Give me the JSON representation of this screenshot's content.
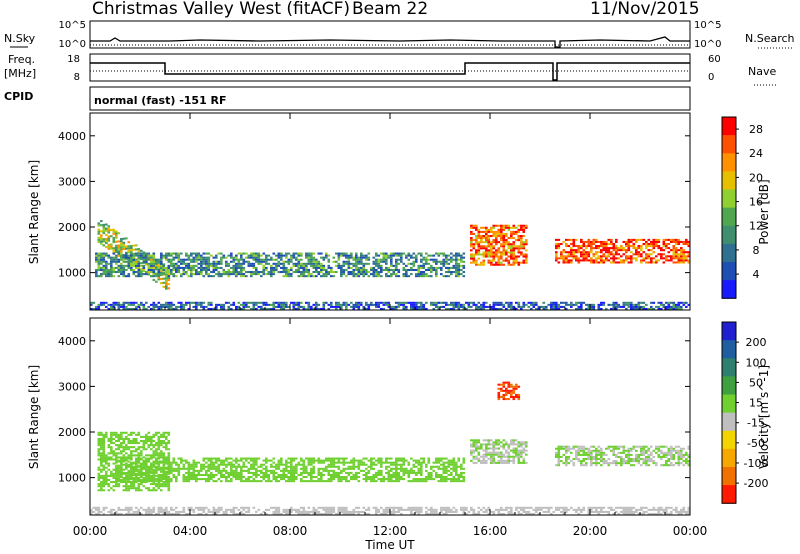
{
  "header": {
    "station": "Christmas Valley West (fitACF)",
    "beam": "Beam 22",
    "date": "11/Nov/2015"
  },
  "left_labels": {
    "nsky": "N.Sky",
    "freq": "Freq.",
    "freq_unit": "[MHz]",
    "cpid": "CPID"
  },
  "right_labels": {
    "nsearch": "N.Search",
    "nave": "Nave"
  },
  "nsky_axis": {
    "top": "10^5",
    "bottom": "10^0"
  },
  "freq_axis": {
    "top": "18",
    "bottom": "8"
  },
  "nave_axis": {
    "top": "60",
    "bottom": "0"
  },
  "cpid_text": "normal (fast) -151 RF",
  "x_axis": {
    "label": "Time UT",
    "ticks": [
      "00:00",
      "04:00",
      "08:00",
      "12:00",
      "16:00",
      "20:00",
      "00:00"
    ]
  },
  "colors": {
    "power": [
      "#1a1aff",
      "#1f4fb4",
      "#2f6f8f",
      "#3f8f6f",
      "#4fa84f",
      "#8fcf2f",
      "#e6c000",
      "#ff9000",
      "#ff5000",
      "#ff0000"
    ],
    "velocity": [
      "#2020d0",
      "#1f5fa0",
      "#2f7f6f",
      "#3fa040",
      "#6fd030",
      "#bfbfbf",
      "#f2d400",
      "#f7a800",
      "#f07000",
      "#ff1a00"
    ],
    "ground_scatter": "#bfbfbf"
  },
  "chart_data": [
    {
      "type": "heatmap",
      "title": "Power",
      "xlabel": "Time UT",
      "ylabel": "Slant Range [km]",
      "xlim": [
        "00:00",
        "24:00"
      ],
      "ylim": [
        180,
        4500
      ],
      "y_ticks": [
        1000,
        2000,
        3000,
        4000
      ],
      "colorbar": {
        "label": "Power [dB]",
        "ticks": [
          4,
          8,
          12,
          16,
          20,
          24,
          28
        ],
        "range": [
          0,
          30
        ]
      },
      "regions": [
        {
          "t": [
            0.3,
            3.2
          ],
          "r": [
            700,
            2000
          ],
          "value": 16,
          "desc": "descending band"
        },
        {
          "t": [
            0.2,
            15.0
          ],
          "r": [
            900,
            1400
          ],
          "value": 10
        },
        {
          "t": [
            15.2,
            17.5
          ],
          "r": [
            1150,
            2050
          ],
          "value": 24
        },
        {
          "t": [
            18.6,
            24.0
          ],
          "r": [
            1200,
            1700
          ],
          "value": 26
        },
        {
          "t": [
            0.0,
            24.0
          ],
          "r": [
            180,
            350
          ],
          "value": 6
        }
      ]
    },
    {
      "type": "heatmap",
      "title": "Velocity",
      "xlabel": "Time UT",
      "ylabel": "Slant Range [km]",
      "xlim": [
        "00:00",
        "24:00"
      ],
      "ylim": [
        180,
        4500
      ],
      "y_ticks": [
        1000,
        2000,
        3000,
        4000
      ],
      "colorbar": {
        "label": "Velocity [m s^-1]",
        "ticks": [
          200,
          100,
          50,
          15,
          -15,
          -50,
          -100,
          -200
        ],
        "range": [
          -250,
          250
        ]
      },
      "regions": [
        {
          "t": [
            0.3,
            3.2
          ],
          "r": [
            700,
            2000
          ],
          "value": 30
        },
        {
          "t": [
            1.0,
            15.0
          ],
          "r": [
            900,
            1400
          ],
          "value": 40
        },
        {
          "t": [
            15.2,
            17.5
          ],
          "r": [
            1300,
            1800
          ],
          "value": 0
        },
        {
          "t": [
            18.6,
            24.0
          ],
          "r": [
            1250,
            1700
          ],
          "value": 0
        },
        {
          "t": [
            16.3,
            17.2
          ],
          "r": [
            2700,
            3100
          ],
          "value": -200
        },
        {
          "t": [
            0.0,
            24.0
          ],
          "r": [
            180,
            350
          ],
          "value": -30
        }
      ]
    }
  ]
}
